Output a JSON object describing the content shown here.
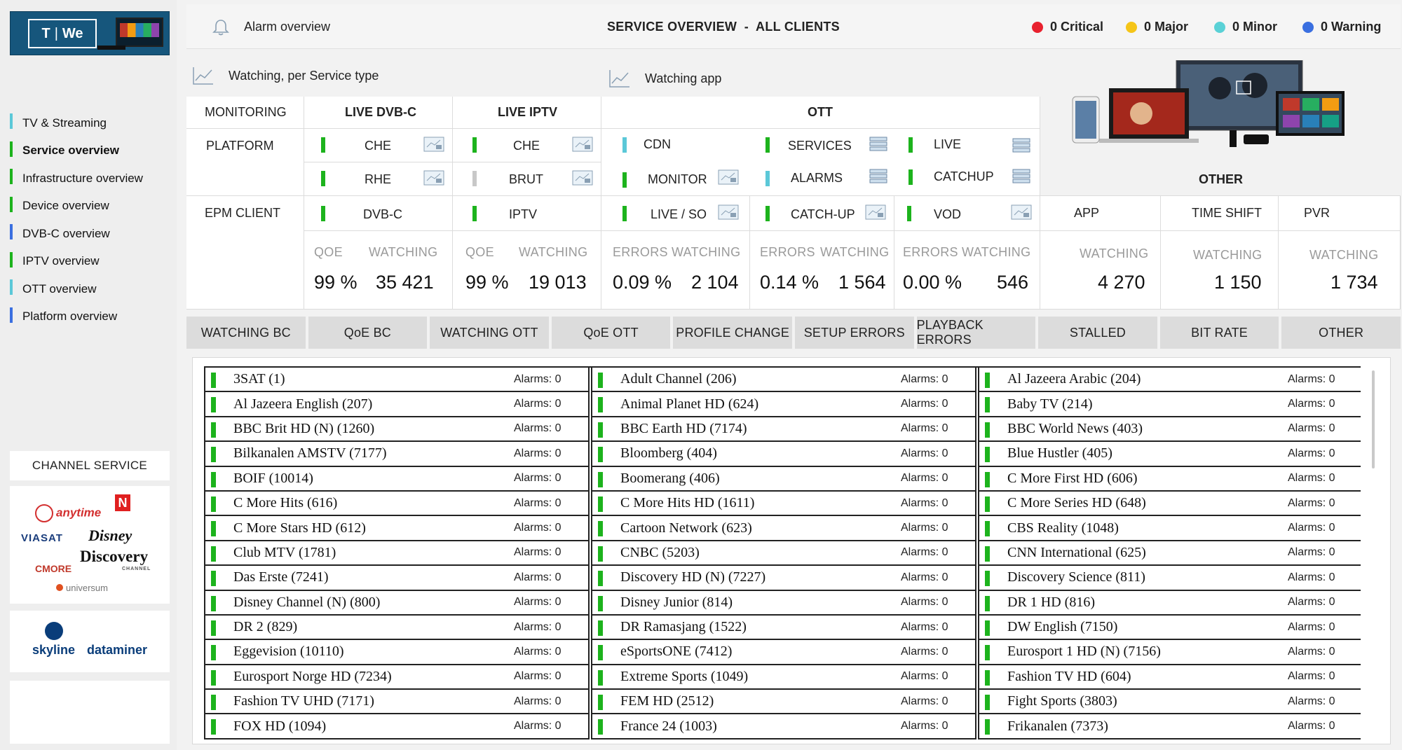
{
  "logo": {
    "text_left": "T",
    "text_right": "We"
  },
  "sidebar": {
    "items": [
      {
        "label": "TV & Streaming",
        "bar_color": "#5bc8d8",
        "active": false
      },
      {
        "label": "Service overview",
        "bar_color": "#1db31d",
        "active": true
      },
      {
        "label": "Infrastructure overview",
        "bar_color": "#1db31d",
        "active": false
      },
      {
        "label": "Device overview",
        "bar_color": "#1db31d",
        "active": false
      },
      {
        "label": "DVB-C overview",
        "bar_color": "#3a6fe0",
        "active": false
      },
      {
        "label": "IPTV overview",
        "bar_color": "#1db31d",
        "active": false
      },
      {
        "label": "OTT overview",
        "bar_color": "#5bc8d8",
        "active": false
      },
      {
        "label": "Platform overview",
        "bar_color": "#3a6fe0",
        "active": false
      }
    ],
    "channel_service_title": "CHANNEL SERVICE",
    "brands": [
      "anytime",
      "N",
      "VIASAT",
      "Disney",
      "Discovery",
      "CHANNEL",
      "CMORE",
      "universum"
    ],
    "partners": [
      "skyline",
      "dataminer"
    ]
  },
  "header": {
    "alarm_overview": "Alarm overview",
    "title": "SERVICE OVERVIEW  -  ALL CLIENTS",
    "alarms": [
      {
        "label": "0 Critical",
        "color": "#e8212e"
      },
      {
        "label": "0 Major",
        "color": "#f5c518"
      },
      {
        "label": "0 Minor",
        "color": "#5ad1d6"
      },
      {
        "label": "0 Warning",
        "color": "#3a6fe0"
      }
    ]
  },
  "links": {
    "service_type": "Watching, per Service type",
    "app": "Watching app"
  },
  "grid": {
    "monitoring": "MONITORING",
    "platform": "PLATFORM",
    "epm_client": "EPM CLIENT",
    "live_dvbc": "LIVE DVB-C",
    "live_iptv": "LIVE IPTV",
    "ott": "OTT",
    "other": "OTHER",
    "dvbc_che": "CHE",
    "dvbc_rhe": "RHE",
    "dvbc_client": "DVB-C",
    "iptv_che": "CHE",
    "iptv_brut": "BRUT",
    "iptv_client": "IPTV",
    "ott_cdn": "CDN",
    "ott_monitor": "MONITOR",
    "ott_services": "SERVICES",
    "ott_alarms": "ALARMS",
    "ott_live": "LIVE",
    "ott_catchup": "CATCHUP",
    "ott_live_so": "LIVE / SO",
    "ott_catch_up": "CATCH-UP",
    "ott_vod": "VOD",
    "other_app": "APP",
    "other_timeshift": "TIME SHIFT",
    "other_pvr": "PVR",
    "qoe": "QOE",
    "watching": "WATCHING",
    "errors": "ERRORS",
    "dvbc_qoe": "99 %",
    "dvbc_watching": "35 421",
    "iptv_qoe": "99 %",
    "iptv_watching": "19 013",
    "live_errors": "0.09 %",
    "live_watching": "2 104",
    "catchup_errors": "0.14 %",
    "catchup_watching": "1 564",
    "vod_errors": "0.00 %",
    "vod_watching": "546",
    "app_watching": "4 270",
    "timeshift_watching": "1 150",
    "pvr_watching": "1 734"
  },
  "tabs": [
    "WATCHING BC",
    "QoE BC",
    "WATCHING OTT",
    "QoE OTT",
    "PROFILE CHANGE",
    "SETUP ERRORS",
    "PLAYBACK ERRORS",
    "STALLED",
    "BIT RATE",
    "OTHER"
  ],
  "channels": [
    [
      "3SAT (1)",
      "Al Jazeera English (207)",
      "BBC Brit HD (N) (1260)",
      "Bilkanalen AMSTV (7177)",
      "BOIF (10014)",
      "C More Hits (616)",
      "C More Stars HD (612)",
      "Club MTV (1781)",
      "Das Erste (7241)",
      "Disney Channel (N) (800)",
      "DR 2 (829)",
      "Eggevision (10110)",
      "Eurosport Norge HD (7234)",
      "Fashion TV UHD (7171)",
      "FOX HD (1094)"
    ],
    [
      "Adult Channel (206)",
      "Animal Planet HD (624)",
      "BBC Earth HD (7174)",
      "Bloomberg (404)",
      "Boomerang (406)",
      "C More Hits HD (1611)",
      "Cartoon Network (623)",
      "CNBC (5203)",
      "Discovery HD (N) (7227)",
      "Disney Junior (814)",
      "DR Ramasjang (1522)",
      "eSportsONE (7412)",
      "Extreme Sports (1049)",
      "FEM HD (2512)",
      "France 24 (1003)"
    ],
    [
      "Al Jazeera Arabic (204)",
      "Baby TV (214)",
      "BBC World News (403)",
      "Blue Hustler (405)",
      "C More First HD (606)",
      "C More Series HD (648)",
      "CBS Reality (1048)",
      "CNN International (625)",
      "Discovery Science (811)",
      "DR 1 HD (816)",
      "DW English (7150)",
      "Eurosport 1 HD (N) (7156)",
      "Fashion TV HD (604)",
      "Fight Sports (3803)",
      "Frikanalen (7373)"
    ]
  ],
  "alarm_label": "Alarms: 0"
}
